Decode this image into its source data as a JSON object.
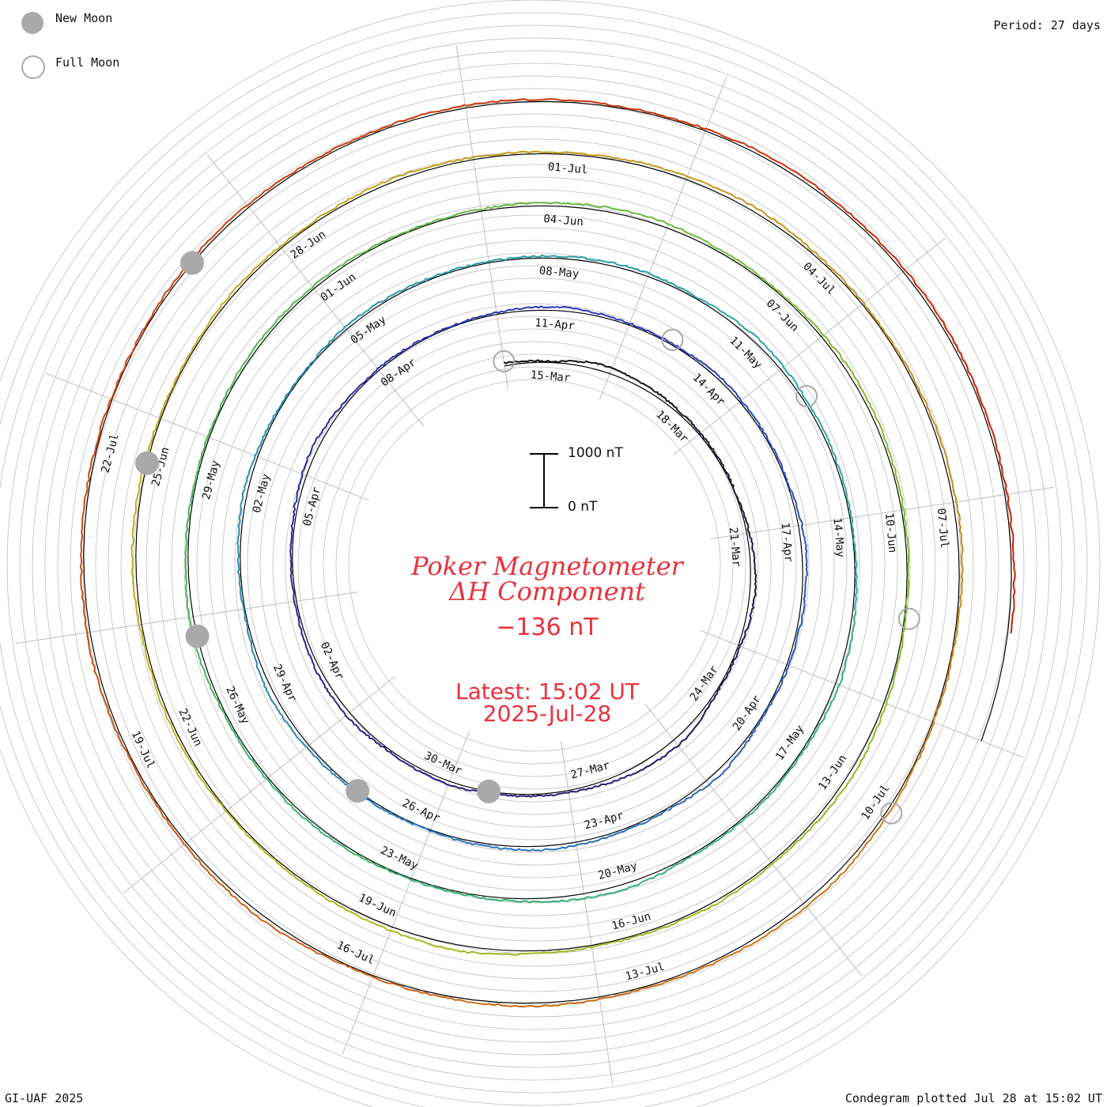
{
  "legend": {
    "new_moon": "New Moon",
    "full_moon": "Full Moon"
  },
  "period_label": "Period: 27 days",
  "credit": "GI-UAF 2025",
  "footer": "Condegram plotted Jul 28 at 15:02 UT",
  "chart_data": {
    "type": "line",
    "subtype": "condegram-spiral",
    "title": "Poker Magnetometer",
    "subtitle": "ΔH Component",
    "current_value": "−136 nT",
    "latest_time": "Latest: 15:02 UT",
    "latest_date": "2025-Jul-28",
    "period_days": 27,
    "date_range": [
      "2025-Mar-14",
      "2025-Jul-28"
    ],
    "scale_bar": {
      "top_label": "1000 nT",
      "bottom_label": "0 nT",
      "range_nT": [
        0,
        1000
      ]
    },
    "colors": {
      "spiral_start": "#111111",
      "spiral_mid": "#2aa6a0",
      "spiral_end": "#cc1a00",
      "grid": "#bdbdbd",
      "title": "#e8323c"
    },
    "date_labels": [
      "15-Mar",
      "18-Mar",
      "21-Mar",
      "24-Mar",
      "27-Mar",
      "30-Mar",
      "02-Apr",
      "05-Apr",
      "08-Apr",
      "11-Apr",
      "14-Apr",
      "17-Apr",
      "20-Apr",
      "23-Apr",
      "26-Apr",
      "29-Apr",
      "02-May",
      "05-May",
      "08-May",
      "11-May",
      "14-May",
      "17-May",
      "20-May",
      "23-May",
      "26-May",
      "29-May",
      "01-Jun",
      "04-Jun",
      "07-Jun",
      "10-Jun",
      "13-Jun",
      "16-Jun",
      "19-Jun",
      "22-Jun",
      "25-Jun",
      "28-Jun",
      "01-Jul",
      "04-Jul",
      "07-Jul",
      "10-Jul",
      "13-Jul",
      "16-Jul",
      "19-Jul",
      "22-Jul"
    ],
    "new_moon_dates": [
      "2025-Mar-29",
      "2025-Apr-27",
      "2025-May-27",
      "2025-Jun-25",
      "2025-Jul-24"
    ],
    "full_moon_dates": [
      "2025-Mar-14",
      "2025-Apr-13",
      "2025-May-12",
      "2025-Jun-11",
      "2025-Jul-10"
    ],
    "daily_dH_nT": [
      -120,
      -40,
      -260,
      -180,
      -90,
      -60,
      -30,
      -150,
      -230,
      -80,
      -40,
      -300,
      -260,
      -110,
      -70,
      -90,
      -140,
      -60,
      -200,
      -170,
      -80,
      -50,
      -120,
      -240,
      -90,
      -60,
      -30,
      -70,
      -150,
      -90,
      -50,
      -110,
      -60,
      -40,
      -180,
      -120,
      -80,
      -40,
      -220,
      -60,
      -100,
      -160,
      -90,
      -30,
      -70,
      -130,
      -210,
      -50,
      -90,
      -150,
      -70,
      -40,
      -120,
      -60,
      -50,
      -90,
      -140,
      -60,
      -200,
      -110,
      -80,
      -40,
      -100,
      -170,
      -60,
      -90,
      -50,
      -230,
      -140,
      -70,
      -40,
      -110,
      -80,
      -60,
      -190,
      -100,
      -50,
      -70,
      -120,
      -90,
      -40,
      -80,
      -130,
      -200,
      -90,
      -60,
      -150,
      -110,
      -70,
      -40,
      -100,
      -180,
      -80,
      -120,
      -60,
      -90,
      -250,
      -140,
      -70,
      -50,
      -100,
      -60,
      -160,
      -90,
      -40,
      -110,
      -70,
      -130,
      -90,
      -60,
      -120,
      -180,
      -80,
      -50,
      -100,
      -150,
      -70,
      -40,
      -90,
      -200,
      -110,
      -60,
      -130,
      -80,
      -50,
      -170,
      -90,
      -60,
      -140,
      -100,
      -70,
      -40,
      -120,
      -90,
      -80,
      -110,
      -70,
      -60,
      -140,
      -95,
      -120,
      -80,
      -100,
      -136
    ]
  }
}
